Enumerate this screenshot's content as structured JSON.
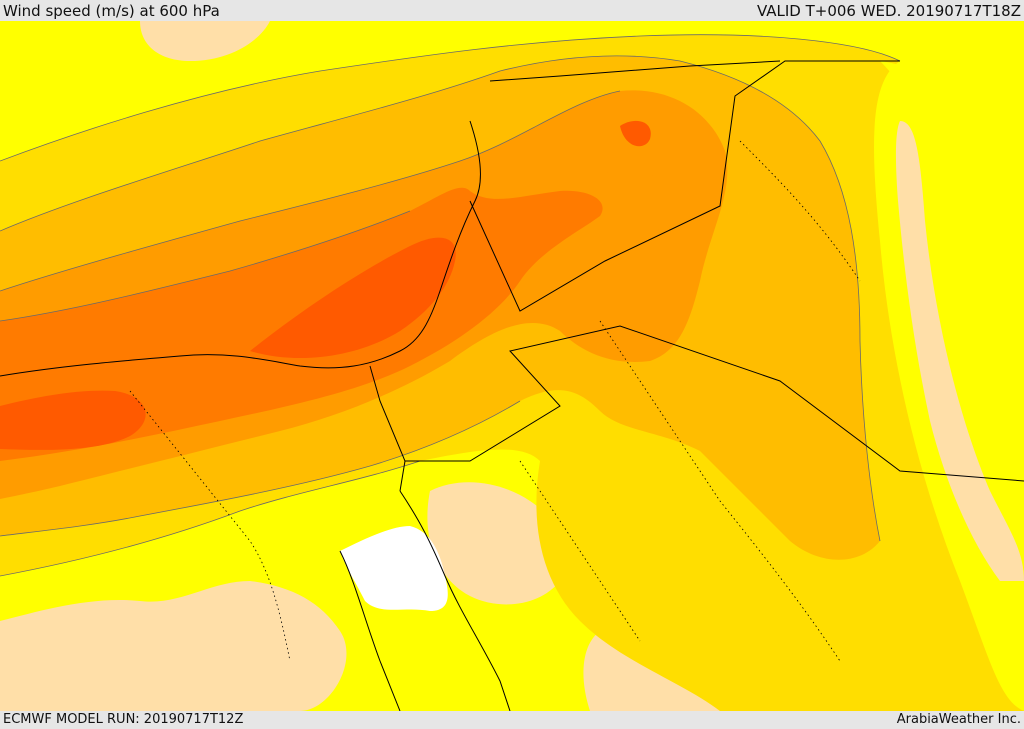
{
  "header": {
    "title": "Wind speed (m/s) at 600 hPa",
    "valid": "VALID T+006 WED. 20190717T18Z"
  },
  "footer": {
    "model_run": "ECMWF MODEL RUN: 20190717T12Z",
    "credit": "ArabiaWeather Inc."
  },
  "colors": {
    "band_1": "#ffdfa8",
    "band_2": "#ffff00",
    "band_3": "#ffde00",
    "band_4": "#ffbd00",
    "band_5": "#ff9c00",
    "band_6": "#ff7b00",
    "band_7": "#ff5a00",
    "calm": "#ffffff",
    "coastline": "#000000",
    "contour": "#6a6a6a"
  }
}
